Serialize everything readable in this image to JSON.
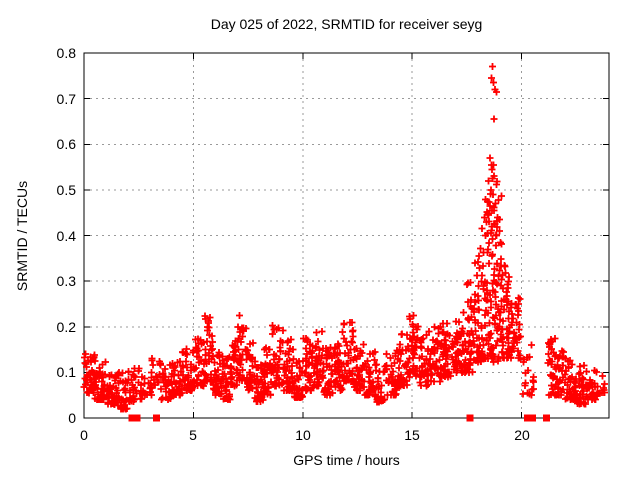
{
  "window": {
    "background": "#ffffff"
  },
  "chart_data": {
    "type": "scatter",
    "title": "Day 025 of 2022, SRMTID for receiver seyg",
    "xlabel": "GPS time / hours",
    "ylabel": "SRMTID / TECUs",
    "xlim": [
      0,
      24
    ],
    "ylim": [
      0,
      0.8
    ],
    "xticks": [
      0,
      5,
      10,
      15,
      20
    ],
    "yticks": [
      0,
      0.1,
      0.2,
      0.3,
      0.4,
      0.5,
      0.6,
      0.7,
      0.8
    ],
    "grid": true,
    "legend_position": "none",
    "marker": {
      "shape": "plus",
      "color": "#ff0000",
      "size": 7
    },
    "zero_marker_shape": "square",
    "axis_color": "#000000",
    "grid_color": "#9a9a9a",
    "background": "#ffffff",
    "seed": 20220125,
    "band_segments": [
      [
        0.0,
        0.5,
        0.055,
        0.14,
        45
      ],
      [
        0.5,
        1.0,
        0.04,
        0.125,
        45
      ],
      [
        1.0,
        1.5,
        0.03,
        0.105,
        40
      ],
      [
        1.5,
        2.0,
        0.02,
        0.1,
        40
      ],
      [
        2.0,
        2.3,
        0.035,
        0.11,
        20
      ],
      [
        2.3,
        2.65,
        0.04,
        0.12,
        16
      ],
      [
        2.65,
        3.0,
        0.05,
        0.1,
        8
      ],
      [
        3.0,
        3.5,
        0.05,
        0.135,
        25
      ],
      [
        3.5,
        4.0,
        0.04,
        0.12,
        30
      ],
      [
        4.0,
        4.5,
        0.05,
        0.135,
        35
      ],
      [
        4.5,
        5.0,
        0.06,
        0.155,
        40
      ],
      [
        5.0,
        5.5,
        0.07,
        0.175,
        40
      ],
      [
        5.5,
        5.9,
        0.08,
        0.225,
        35
      ],
      [
        5.9,
        6.3,
        0.05,
        0.15,
        35
      ],
      [
        6.3,
        6.7,
        0.04,
        0.135,
        30
      ],
      [
        6.7,
        7.0,
        0.07,
        0.185,
        28
      ],
      [
        7.0,
        7.4,
        0.08,
        0.24,
        35
      ],
      [
        7.4,
        7.8,
        0.06,
        0.165,
        35
      ],
      [
        7.8,
        8.2,
        0.035,
        0.125,
        35
      ],
      [
        8.2,
        8.6,
        0.05,
        0.155,
        35
      ],
      [
        8.6,
        9.1,
        0.07,
        0.205,
        40
      ],
      [
        9.1,
        9.6,
        0.06,
        0.175,
        40
      ],
      [
        9.6,
        10.0,
        0.045,
        0.135,
        35
      ],
      [
        10.0,
        10.5,
        0.06,
        0.175,
        40
      ],
      [
        10.5,
        10.9,
        0.07,
        0.19,
        35
      ],
      [
        10.9,
        11.4,
        0.05,
        0.155,
        40
      ],
      [
        11.4,
        11.8,
        0.06,
        0.165,
        35
      ],
      [
        11.8,
        12.35,
        0.08,
        0.25,
        45
      ],
      [
        12.35,
        12.8,
        0.06,
        0.165,
        35
      ],
      [
        12.8,
        13.3,
        0.05,
        0.145,
        35
      ],
      [
        13.3,
        13.8,
        0.035,
        0.12,
        35
      ],
      [
        13.8,
        14.3,
        0.05,
        0.145,
        35
      ],
      [
        14.3,
        14.8,
        0.07,
        0.19,
        40
      ],
      [
        14.8,
        15.3,
        0.09,
        0.23,
        45
      ],
      [
        15.3,
        15.8,
        0.07,
        0.19,
        40
      ],
      [
        15.8,
        16.3,
        0.08,
        0.2,
        40
      ],
      [
        16.3,
        16.8,
        0.09,
        0.21,
        45
      ],
      [
        16.8,
        17.3,
        0.1,
        0.22,
        45
      ],
      [
        17.3,
        17.8,
        0.1,
        0.3,
        50
      ],
      [
        17.8,
        18.3,
        0.12,
        0.38,
        55
      ],
      [
        18.3,
        18.7,
        0.13,
        0.5,
        55
      ],
      [
        18.7,
        19.1,
        0.12,
        0.52,
        55
      ],
      [
        19.1,
        19.5,
        0.13,
        0.34,
        45
      ],
      [
        19.5,
        19.95,
        0.13,
        0.27,
        40
      ],
      [
        19.98,
        20.3,
        0.05,
        0.14,
        10
      ],
      [
        20.35,
        20.55,
        0.05,
        0.16,
        10
      ],
      [
        21.2,
        21.6,
        0.05,
        0.175,
        38
      ],
      [
        21.6,
        22.0,
        0.05,
        0.155,
        32
      ],
      [
        22.0,
        22.5,
        0.04,
        0.135,
        38
      ],
      [
        22.5,
        23.0,
        0.03,
        0.115,
        36
      ],
      [
        23.0,
        23.45,
        0.04,
        0.105,
        30
      ],
      [
        23.45,
        23.8,
        0.05,
        0.095,
        12
      ]
    ],
    "outliers": [
      [
        18.68,
        0.77
      ],
      [
        18.62,
        0.745
      ],
      [
        18.72,
        0.735
      ],
      [
        18.78,
        0.72
      ],
      [
        18.85,
        0.715
      ],
      [
        18.75,
        0.655
      ],
      [
        18.55,
        0.57
      ],
      [
        18.62,
        0.555
      ],
      [
        18.72,
        0.555
      ],
      [
        18.65,
        0.545
      ],
      [
        18.5,
        0.52
      ],
      [
        18.68,
        0.525
      ],
      [
        18.75,
        0.53
      ],
      [
        18.6,
        0.5
      ],
      [
        18.7,
        0.49
      ],
      [
        18.45,
        0.475
      ],
      [
        18.55,
        0.465
      ],
      [
        18.8,
        0.47
      ],
      [
        18.3,
        0.44
      ],
      [
        18.5,
        0.445
      ],
      [
        18.65,
        0.455
      ],
      [
        18.9,
        0.44
      ],
      [
        18.4,
        0.43
      ],
      [
        18.75,
        0.425
      ],
      [
        19.0,
        0.41
      ],
      [
        18.2,
        0.415
      ],
      [
        18.35,
        0.4
      ],
      [
        18.6,
        0.405
      ],
      [
        18.85,
        0.4
      ]
    ],
    "zero_markers": [
      2.2,
      2.42,
      3.32,
      17.65,
      20.28,
      20.5,
      21.15
    ]
  }
}
